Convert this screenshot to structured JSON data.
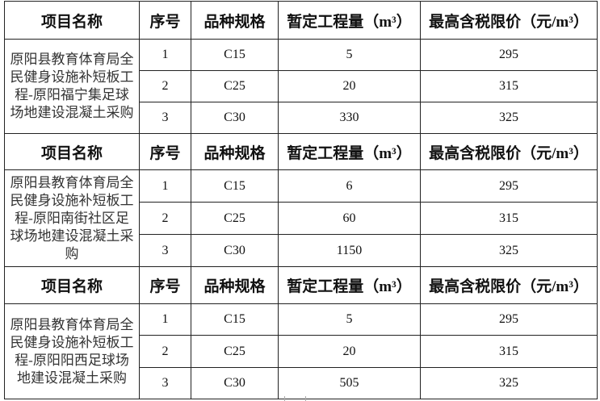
{
  "headers": [
    "项目名称",
    "序号",
    "品种规格",
    "暂定工程量（m³）",
    "最高含税限价（元/m³）"
  ],
  "blocks": [
    {
      "name": "原阳县教育体育局全民健身设施补短板工程-原阳福宁集足球场地建设混凝土采购",
      "rows": [
        {
          "no": "1",
          "spec": "C15",
          "qty": "5",
          "price": "295"
        },
        {
          "no": "2",
          "spec": "C25",
          "qty": "20",
          "price": "315"
        },
        {
          "no": "3",
          "spec": "C30",
          "qty": "330",
          "price": "325"
        }
      ]
    },
    {
      "name": "原阳县教育体育局全民健身设施补短板工程-原阳南街社区足球场地建设混凝土采购",
      "rows": [
        {
          "no": "1",
          "spec": "C15",
          "qty": "6",
          "price": "295"
        },
        {
          "no": "2",
          "spec": "C25",
          "qty": "60",
          "price": "315"
        },
        {
          "no": "3",
          "spec": "C30",
          "qty": "1150",
          "price": "325"
        }
      ]
    },
    {
      "name": "原阳县教育体育局全民健身设施补短板工程-原阳阳西足球场地建设混凝土采购",
      "rows": [
        {
          "no": "1",
          "spec": "C15",
          "qty": "5",
          "price": "295"
        },
        {
          "no": "2",
          "spec": "C25",
          "qty": "20",
          "price": "315"
        },
        {
          "no": "3",
          "spec": "C30",
          "qty": "505",
          "price": "325"
        }
      ]
    }
  ]
}
